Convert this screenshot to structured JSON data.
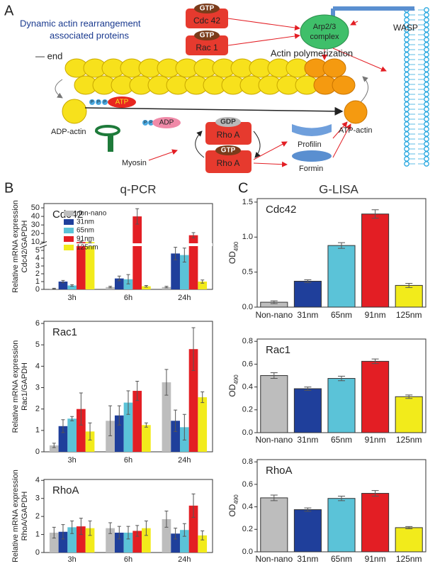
{
  "panels": {
    "a": "A",
    "b": "B",
    "c": "C"
  },
  "titles": {
    "qpcr": "q-PCR",
    "glisa": "G-LISA"
  },
  "diagram": {
    "labels": [
      "Dynamic actin rearrangement",
      "associated proteins",
      "GTP",
      "Cdc 42",
      "GTP",
      "Rac 1",
      "Arp2/3",
      "complex",
      "WASP",
      "Actin polymerization",
      "— end",
      "P",
      "P",
      "P",
      "ATP",
      "ADP-actin",
      "P",
      "P",
      "ADP",
      "Myosin",
      "GDP",
      "Rho A",
      "GTP",
      "Rho A",
      "Profilin",
      "Formin",
      "ATP-actin"
    ]
  },
  "chart_data": [
    {
      "type": "bar",
      "title": "Cdc42",
      "ylabel": [
        "Relative mRNA expression",
        "Cdc42/GAPDH"
      ],
      "categories": [
        "3h",
        "6h",
        "24h"
      ],
      "series": [
        {
          "name": "non-nano",
          "color": "#bdbdbd",
          "values": [
            0.1,
            0.3,
            0.3
          ],
          "errors": [
            0.05,
            0.1,
            0.1
          ]
        },
        {
          "name": "31nm",
          "color": "#1f3f9b",
          "values": [
            1.0,
            1.4,
            4.6
          ],
          "errors": [
            0.15,
            0.3,
            0.8
          ]
        },
        {
          "name": "65nm",
          "color": "#5bc3d8",
          "values": [
            0.5,
            1.3,
            4.4
          ],
          "errors": [
            0.1,
            0.6,
            0.9
          ]
        },
        {
          "name": "91nm",
          "color": "#e31e24",
          "values": [
            10,
            40,
            18
          ],
          "errors": [
            1,
            9,
            3
          ]
        },
        {
          "name": "125nm",
          "color": "#f2eb1b",
          "values": [
            10,
            0.4,
            1.0
          ],
          "errors": [
            1,
            0.1,
            0.2
          ]
        }
      ],
      "ylim": [
        0,
        55
      ],
      "yticks": [
        0,
        1,
        2,
        3,
        4,
        5,
        10,
        20,
        30,
        40,
        50
      ],
      "y_break": [
        5.5,
        9
      ],
      "legend": "upper left"
    },
    {
      "type": "bar",
      "title": "Rac1",
      "ylabel": [
        "Relative mRNA expression",
        "Rac1/GAPDH"
      ],
      "categories": [
        "3h",
        "6h",
        "24h"
      ],
      "series": [
        {
          "color": "#bdbdbd",
          "values": [
            0.3,
            1.45,
            3.25
          ],
          "errors": [
            0.1,
            0.7,
            0.6
          ]
        },
        {
          "color": "#1f3f9b",
          "values": [
            1.2,
            1.7,
            1.45
          ],
          "errors": [
            0.3,
            0.45,
            0.5
          ]
        },
        {
          "color": "#5bc3d8",
          "values": [
            1.55,
            2.3,
            1.15
          ],
          "errors": [
            0.1,
            0.55,
            0.6
          ]
        },
        {
          "color": "#e31e24",
          "values": [
            2.0,
            2.85,
            4.8
          ],
          "errors": [
            0.75,
            0.45,
            1.0
          ]
        },
        {
          "color": "#f2eb1b",
          "values": [
            0.95,
            1.25,
            2.55
          ],
          "errors": [
            0.4,
            0.1,
            0.25
          ]
        }
      ],
      "ylim": [
        0,
        6.1
      ],
      "yticks": [
        0,
        1,
        2,
        3,
        4,
        5,
        6
      ]
    },
    {
      "type": "bar",
      "title": "RhoA",
      "ylabel": [
        "Relative mRNA expression",
        "RhoA/GAPDH"
      ],
      "categories": [
        "3h",
        "6h",
        "24h"
      ],
      "series": [
        {
          "color": "#bdbdbd",
          "values": [
            1.1,
            1.35,
            1.85
          ],
          "errors": [
            0.3,
            0.3,
            0.45
          ]
        },
        {
          "color": "#1f3f9b",
          "values": [
            1.15,
            1.1,
            1.05
          ],
          "errors": [
            0.4,
            0.35,
            0.3
          ]
        },
        {
          "color": "#5bc3d8",
          "values": [
            1.4,
            1.1,
            1.25
          ],
          "errors": [
            0.35,
            0.35,
            0.35
          ]
        },
        {
          "color": "#e31e24",
          "values": [
            1.45,
            1.2,
            2.6
          ],
          "errors": [
            0.45,
            0.3,
            0.65
          ]
        },
        {
          "color": "#f2eb1b",
          "values": [
            1.35,
            1.35,
            0.95
          ],
          "errors": [
            0.4,
            0.4,
            0.25
          ]
        }
      ],
      "ylim": [
        0,
        4.05
      ],
      "yticks": [
        0,
        1,
        2,
        3,
        4
      ]
    },
    {
      "type": "bar",
      "title": "Cdc42",
      "ylabel": {
        "text": "OD",
        "sub": "490"
      },
      "categories": [
        "Non-nano",
        "31nm",
        "65nm",
        "91nm",
        "125nm"
      ],
      "values": [
        0.07,
        0.37,
        0.88,
        1.33,
        0.31
      ],
      "errors": [
        0.02,
        0.02,
        0.04,
        0.06,
        0.03
      ],
      "colors": [
        "#bdbdbd",
        "#1f3f9b",
        "#5bc3d8",
        "#e31e24",
        "#f2eb1b"
      ],
      "ylim": [
        0,
        1.55
      ],
      "yticks": [
        {
          "value": 0,
          "label": "0.0"
        },
        0.5,
        {
          "value": 1,
          "label": "1.0"
        },
        1.5
      ]
    },
    {
      "type": "bar",
      "title": "Rac1",
      "ylabel": {
        "text": "OD",
        "sub": "490"
      },
      "categories": [
        "Non-nano",
        "31nm",
        "65nm",
        "91nm",
        "125nm"
      ],
      "values": [
        0.5,
        0.385,
        0.475,
        0.625,
        0.315
      ],
      "errors": [
        0.025,
        0.015,
        0.02,
        0.02,
        0.015
      ],
      "colors": [
        "#bdbdbd",
        "#1f3f9b",
        "#5bc3d8",
        "#e31e24",
        "#f2eb1b"
      ],
      "ylim": [
        0,
        0.82
      ],
      "yticks": [
        {
          "value": 0,
          "label": "0.0"
        },
        0.2,
        0.4,
        0.6,
        0.8
      ]
    },
    {
      "type": "bar",
      "title": "RhoA",
      "ylabel": {
        "text": "OD",
        "sub": "490"
      },
      "categories": [
        "Non-nano",
        "31nm",
        "65nm",
        "91nm",
        "125nm"
      ],
      "values": [
        0.48,
        0.375,
        0.475,
        0.52,
        0.215
      ],
      "errors": [
        0.025,
        0.015,
        0.02,
        0.025,
        0.01
      ],
      "colors": [
        "#bdbdbd",
        "#1f3f9b",
        "#5bc3d8",
        "#e31e24",
        "#f2eb1b"
      ],
      "ylim": [
        0,
        0.82
      ],
      "yticks": [
        {
          "value": 0,
          "label": "0.0"
        },
        0.2,
        0.4,
        0.6,
        0.8
      ]
    }
  ]
}
